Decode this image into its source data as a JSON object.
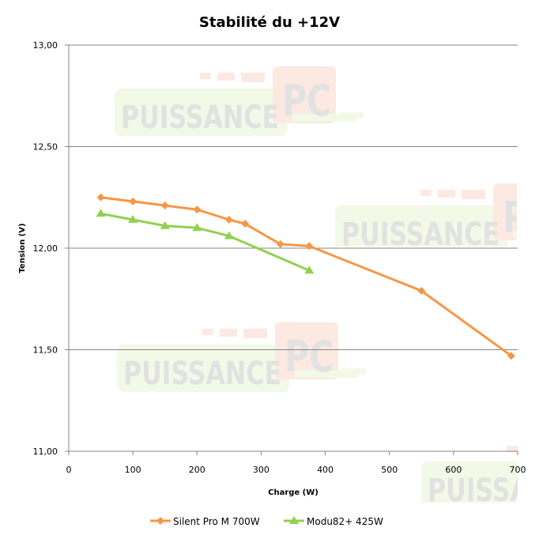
{
  "chart_data": {
    "type": "line",
    "title": "Stabilité du +12V",
    "xlabel": "Charge (W)",
    "ylabel": "Tension (V)",
    "xlim": [
      0,
      700
    ],
    "ylim": [
      11.0,
      13.0
    ],
    "x_ticks": [
      "0",
      "100",
      "200",
      "300",
      "400",
      "500",
      "600",
      "700"
    ],
    "y_ticks": [
      "11,00",
      "11,50",
      "12,00",
      "12,50",
      "13,00"
    ],
    "grid": "horizontal major gridlines",
    "legend_position": "bottom",
    "series": [
      {
        "name": "Silent Pro M 700W",
        "color": "#f79646",
        "marker": "diamond",
        "x": [
          50,
          100,
          150,
          200,
          250,
          275,
          330,
          375,
          550,
          690
        ],
        "values": [
          12.25,
          12.23,
          12.21,
          12.19,
          12.14,
          12.12,
          12.02,
          12.01,
          11.79,
          11.47
        ]
      },
      {
        "name": "Modu82+ 425W",
        "color": "#92d050",
        "marker": "triangle",
        "x": [
          50,
          100,
          150,
          200,
          250,
          375
        ],
        "values": [
          12.17,
          12.14,
          12.11,
          12.1,
          12.06,
          11.89
        ]
      }
    ]
  },
  "watermark": {
    "word1": "PUISSANCE",
    "word2": "PC"
  }
}
